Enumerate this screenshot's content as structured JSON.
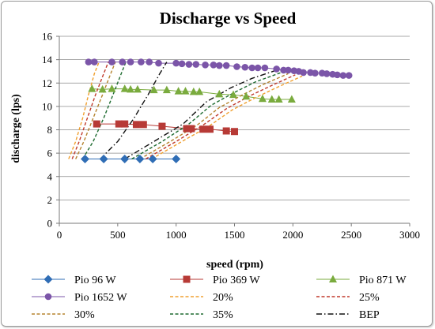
{
  "chart_data": {
    "type": "scatter",
    "title": "Discharge vs Speed",
    "xlabel": "speed (rpm)",
    "ylabel": "discharge (lps)",
    "xlim": [
      0,
      3000
    ],
    "ylim": [
      0,
      16
    ],
    "x_ticks": [
      "0",
      "500",
      "1000",
      "1500",
      "2000",
      "2500",
      "3000"
    ],
    "y_ticks": [
      "0",
      "2",
      "4",
      "6",
      "8",
      "10",
      "12",
      "14",
      "16"
    ],
    "grid": "horizontal",
    "legend_position": "bottom",
    "series": [
      {
        "name": "Pio 96 W",
        "kind": "marker",
        "marker": "diamond",
        "color": "#2f6db5",
        "x": [
          220,
          380,
          560,
          690,
          800,
          1000
        ],
        "y": [
          5.5,
          5.5,
          5.5,
          5.5,
          5.5,
          5.5
        ],
        "trendline": true
      },
      {
        "name": "Pio 369 W",
        "kind": "marker",
        "marker": "square",
        "color": "#b73a36",
        "x": [
          320,
          510,
          560,
          660,
          720,
          880,
          1090,
          1130,
          1230,
          1290,
          1430,
          1500
        ],
        "y": [
          8.5,
          8.5,
          8.5,
          8.45,
          8.45,
          8.3,
          8.1,
          8.1,
          8.05,
          8.05,
          7.9,
          7.85
        ],
        "trendline": true
      },
      {
        "name": "Pio 871 W",
        "kind": "marker",
        "marker": "triangle",
        "color": "#7aab3e",
        "x": [
          280,
          370,
          450,
          560,
          610,
          670,
          810,
          920,
          1020,
          1080,
          1150,
          1200,
          1370,
          1490,
          1600,
          1740,
          1820,
          1880,
          1990
        ],
        "y": [
          11.5,
          11.45,
          11.5,
          11.5,
          11.45,
          11.45,
          11.4,
          11.4,
          11.3,
          11.3,
          11.25,
          11.25,
          11.05,
          11.0,
          10.85,
          10.65,
          10.6,
          10.6,
          10.6
        ],
        "trendline": true
      },
      {
        "name": "Pio 1652 W",
        "kind": "marker",
        "marker": "circle",
        "color": "#7b55a8",
        "x": [
          250,
          300,
          450,
          540,
          610,
          700,
          770,
          850,
          1000,
          1050,
          1110,
          1170,
          1250,
          1320,
          1370,
          1430,
          1520,
          1590,
          1650,
          1700,
          1760,
          1860,
          1920,
          1960,
          2010,
          2050,
          2090,
          2150,
          2190,
          2250,
          2290,
          2340,
          2380,
          2430,
          2480
        ],
        "y": [
          13.8,
          13.8,
          13.8,
          13.8,
          13.8,
          13.8,
          13.8,
          13.7,
          13.7,
          13.65,
          13.6,
          13.6,
          13.55,
          13.55,
          13.5,
          13.5,
          13.4,
          13.35,
          13.3,
          13.3,
          13.3,
          13.2,
          13.1,
          13.1,
          13.05,
          13.0,
          12.9,
          12.9,
          12.85,
          12.85,
          12.8,
          12.75,
          12.7,
          12.65,
          12.65
        ],
        "trendline": true
      },
      {
        "name": "20%",
        "kind": "line",
        "dash": "dashed",
        "color": "#f0a030",
        "x": [
          80,
          140,
          200,
          250,
          300,
          340
        ],
        "y": [
          5.5,
          7.0,
          9.0,
          11.0,
          12.8,
          13.8
        ]
      },
      {
        "name": "25%",
        "kind": "line",
        "dash": "dashed",
        "color": "#c0392b",
        "x": [
          110,
          170,
          240,
          310,
          380,
          420
        ],
        "y": [
          5.5,
          7.0,
          9.0,
          11.0,
          12.8,
          13.8
        ]
      },
      {
        "name": "30%",
        "kind": "line",
        "dash": "dashed",
        "color": "#b5832f",
        "x": [
          140,
          210,
          290,
          370,
          440,
          480
        ],
        "y": [
          5.5,
          7.0,
          9.0,
          11.0,
          12.8,
          13.8
        ]
      },
      {
        "name": "35%",
        "kind": "line",
        "dash": "dashed",
        "color": "#1e6b30",
        "x": [
          200,
          290,
          380,
          460,
          530,
          570
        ],
        "y": [
          5.5,
          7.0,
          9.0,
          11.0,
          12.8,
          13.8
        ]
      },
      {
        "name": "BEP",
        "kind": "line",
        "dash": "dashdot",
        "color": "#111111",
        "x": [
          350,
          500,
          640,
          760,
          860,
          920
        ],
        "y": [
          5.5,
          7.0,
          9.0,
          11.0,
          12.8,
          13.8
        ]
      },
      {
        "name": "",
        "kind": "line",
        "dash": "dashdot",
        "color": "#111111",
        "x": [
          560,
          810,
          1060,
          1260,
          1470,
          1650,
          1860
        ],
        "y": [
          5.5,
          7.0,
          8.5,
          10.4,
          11.6,
          12.4,
          13.1
        ]
      },
      {
        "name": "",
        "kind": "line",
        "dash": "dashed",
        "color": "#1e6b30",
        "x": [
          620,
          880,
          1110,
          1300,
          1500,
          1680,
          1900
        ],
        "y": [
          5.5,
          7.0,
          8.5,
          10.1,
          11.2,
          12.1,
          12.9
        ]
      },
      {
        "name": "",
        "kind": "line",
        "dash": "dashed",
        "color": "#b5832f",
        "x": [
          690,
          950,
          1180,
          1370,
          1570,
          1750,
          1960
        ],
        "y": [
          5.5,
          7.0,
          8.4,
          9.9,
          11.0,
          11.9,
          12.8
        ]
      },
      {
        "name": "",
        "kind": "line",
        "dash": "dashed",
        "color": "#c0392b",
        "x": [
          740,
          1000,
          1230,
          1430,
          1630,
          1820,
          2020
        ],
        "y": [
          5.5,
          7.0,
          8.4,
          9.8,
          10.9,
          11.8,
          12.7
        ]
      },
      {
        "name": "",
        "kind": "line",
        "dash": "dashed",
        "color": "#f0a030",
        "x": [
          790,
          1050,
          1280,
          1480,
          1690,
          1880,
          2080
        ],
        "y": [
          5.5,
          7.0,
          8.3,
          9.7,
          10.8,
          11.7,
          12.6
        ]
      }
    ]
  }
}
